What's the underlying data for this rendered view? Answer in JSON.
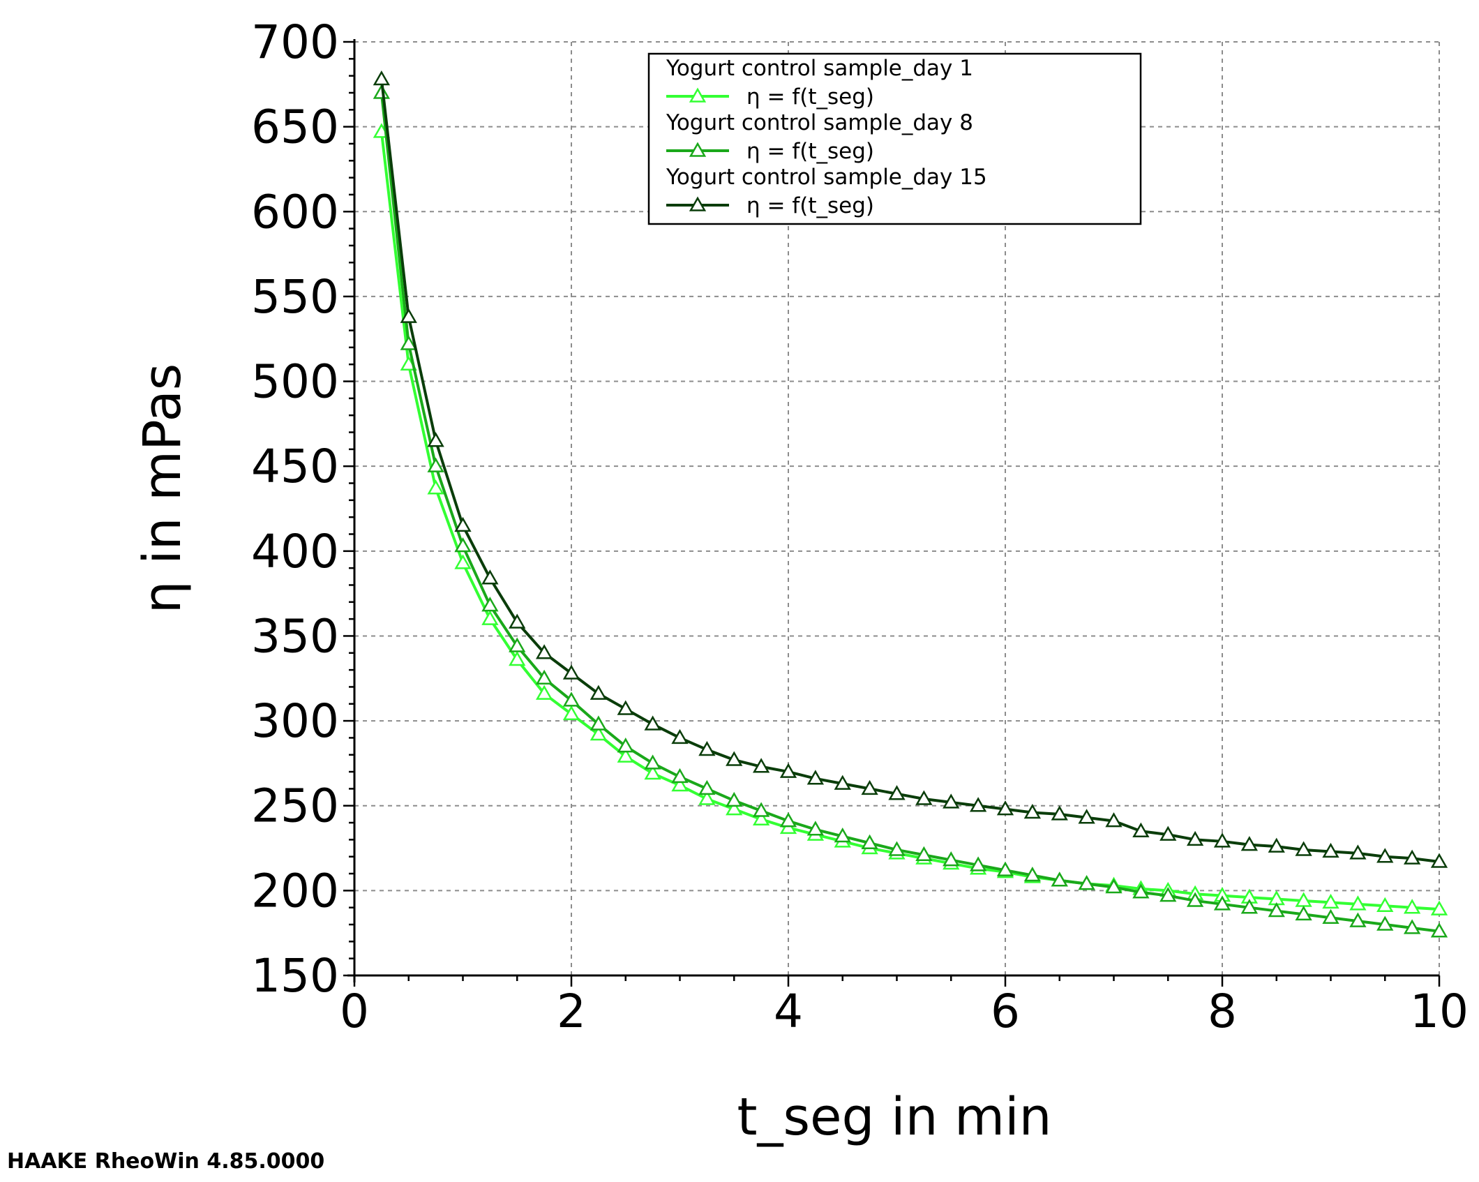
{
  "footer": "HAAKE RheoWin 4.85.0000",
  "chart_data": {
    "type": "line",
    "title": "",
    "xlabel": "t_seg in min",
    "ylabel": "η in mPas",
    "xlim": [
      0,
      10
    ],
    "ylim": [
      150,
      700
    ],
    "x_ticks": [
      "0",
      "2",
      "4",
      "6",
      "8",
      "10"
    ],
    "y_ticks": [
      "150",
      "200",
      "250",
      "300",
      "350",
      "400",
      "450",
      "500",
      "550",
      "600",
      "650",
      "700"
    ],
    "grid": true,
    "legend_position": "top-center",
    "marker": "open-triangle",
    "x": [
      0.25,
      0.5,
      0.75,
      1.0,
      1.25,
      1.5,
      1.75,
      2.0,
      2.25,
      2.5,
      2.75,
      3.0,
      3.25,
      3.5,
      3.75,
      4.0,
      4.25,
      4.5,
      4.75,
      5.0,
      5.25,
      5.5,
      5.75,
      6.0,
      6.25,
      6.5,
      6.75,
      7.0,
      7.25,
      7.5,
      7.75,
      8.0,
      8.25,
      8.5,
      8.75,
      9.0,
      9.25,
      9.5,
      9.75,
      10.0
    ],
    "series": [
      {
        "group": "Yogurt control sample_day 1",
        "name": "η = f(t_seg)",
        "color": "#33ff33",
        "values": [
          647,
          510,
          437,
          393,
          360,
          336,
          316,
          304,
          292,
          279,
          269,
          262,
          254,
          248,
          242,
          237,
          233,
          229,
          225,
          222,
          219,
          216,
          213,
          211,
          208,
          206,
          204,
          203,
          201,
          200,
          198,
          197,
          196,
          195,
          194,
          193,
          192,
          191,
          190,
          189
        ]
      },
      {
        "group": "Yogurt control sample_day 8",
        "name": "η = f(t_seg)",
        "color": "#1aa81a",
        "values": [
          670,
          522,
          450,
          403,
          368,
          344,
          325,
          312,
          298,
          285,
          275,
          267,
          260,
          253,
          247,
          241,
          236,
          232,
          228,
          224,
          221,
          218,
          215,
          212,
          209,
          206,
          204,
          202,
          199,
          197,
          194,
          192,
          190,
          188,
          186,
          184,
          182,
          180,
          178,
          176
        ]
      },
      {
        "group": "Yogurt control sample_day 15",
        "name": "η = f(t_seg)",
        "color": "#0a3d0a",
        "values": [
          678,
          538,
          465,
          415,
          384,
          358,
          340,
          328,
          316,
          307,
          298,
          290,
          283,
          277,
          273,
          270,
          266,
          263,
          260,
          257,
          254,
          252,
          250,
          248,
          246,
          245,
          243,
          241,
          235,
          233,
          230,
          229,
          227,
          226,
          224,
          223,
          222,
          220,
          219,
          217
        ]
      }
    ]
  }
}
